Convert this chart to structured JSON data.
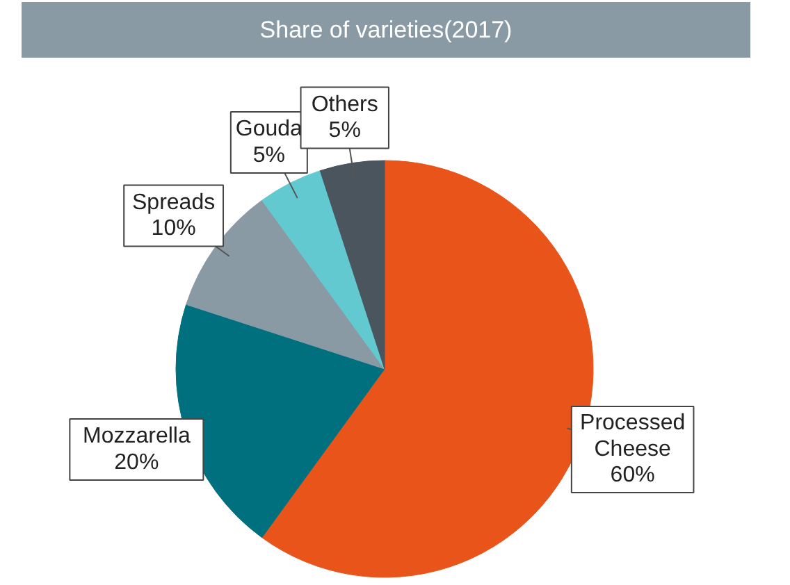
{
  "chart_data": {
    "type": "pie",
    "title": "Share of varieties(2017)",
    "categories": [
      "Processed Cheese",
      "Mozzarella",
      "Spreads",
      "Gouda",
      "Others"
    ],
    "values": [
      60,
      20,
      10,
      5,
      5
    ],
    "colors": [
      "#e8541a",
      "#00707f",
      "#8a9aa5",
      "#63c9d0",
      "#4a555e"
    ],
    "value_labels": [
      "60%",
      "20%",
      "10%",
      "5%",
      "5%"
    ]
  }
}
